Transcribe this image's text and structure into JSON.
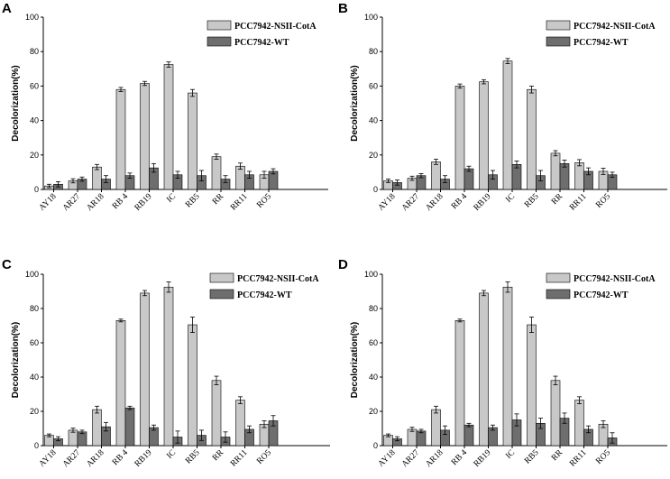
{
  "colors": {
    "nsii": "#c8c8c8",
    "wt": "#6e6e6e",
    "stroke": "#000000"
  },
  "chart_data": [
    {
      "type": "bar",
      "panel": "A",
      "ylabel": "Decolorization(%)",
      "xlabel": "",
      "ylim": [
        0,
        100
      ],
      "yticks": [
        0,
        20,
        40,
        60,
        80,
        100
      ],
      "categories": [
        "AY18",
        "AR27",
        "AR18",
        "RB 4",
        "RB19",
        "IC",
        "RB5",
        "RR",
        "RR11",
        "RO5"
      ],
      "legend_position": "top-right",
      "series": [
        {
          "name": "PCC7942-NSII-CotA",
          "values": [
            2,
            5,
            13,
            58,
            61.5,
            72.5,
            56,
            19,
            13.5,
            8.5
          ],
          "errors": [
            1,
            1.2,
            1.5,
            1.2,
            1.2,
            1.5,
            2,
            1.5,
            1.8,
            2
          ]
        },
        {
          "name": "PCC7942-WT",
          "values": [
            3,
            6,
            6,
            8,
            12.5,
            8.5,
            8,
            6,
            8.5,
            10.5
          ],
          "errors": [
            1.5,
            1.2,
            2,
            1.5,
            2.5,
            2,
            3,
            2,
            2,
            1.5
          ]
        }
      ]
    },
    {
      "type": "bar",
      "panel": "B",
      "ylabel": "Decolorization(%)",
      "xlabel": "",
      "ylim": [
        0,
        100
      ],
      "yticks": [
        0,
        20,
        40,
        60,
        80,
        100
      ],
      "categories": [
        "AY18",
        "AR27",
        "AR18",
        "RB 4",
        "RB19",
        "IC",
        "RB5",
        "RR",
        "RR11",
        "RO5"
      ],
      "legend_position": "top-right",
      "series": [
        {
          "name": "PCC7942-NSII-CotA",
          "values": [
            5,
            6.5,
            16,
            60,
            62.5,
            74.5,
            58,
            21,
            15.5,
            10.5
          ],
          "errors": [
            1,
            1.2,
            1.5,
            1.2,
            1.2,
            1.5,
            2,
            1.5,
            1.8,
            1.8
          ]
        },
        {
          "name": "PCC7942-WT",
          "values": [
            4,
            8,
            6,
            12,
            8.5,
            14.5,
            8,
            15,
            10.5,
            8.5
          ],
          "errors": [
            1.5,
            1.2,
            2,
            1.5,
            2.5,
            2,
            3,
            2,
            2,
            1.5
          ]
        }
      ]
    },
    {
      "type": "bar",
      "panel": "C",
      "ylabel": "Decolorization(%)",
      "xlabel": "",
      "ylim": [
        0,
        100
      ],
      "yticks": [
        0,
        20,
        40,
        60,
        80,
        100
      ],
      "categories": [
        "AY18",
        "AR27",
        "AR18",
        "RB 4",
        "RB19",
        "IC",
        "RB5",
        "RR",
        "RR11",
        "RO5"
      ],
      "legend_position": "top-right",
      "series": [
        {
          "name": "PCC7942-NSII-CotA",
          "values": [
            6,
            9,
            21,
            73,
            89,
            92.5,
            70.5,
            38,
            26.5,
            12.5
          ],
          "errors": [
            0.8,
            1.2,
            2,
            0.8,
            1.5,
            3,
            4.5,
            2.5,
            2,
            2
          ]
        },
        {
          "name": "PCC7942-WT",
          "values": [
            4,
            8,
            11,
            22,
            10.5,
            5,
            6,
            5,
            9.5,
            14.5
          ],
          "errors": [
            1.2,
            1,
            2.5,
            1,
            1.5,
            3.5,
            3,
            3,
            2,
            3
          ]
        }
      ]
    },
    {
      "type": "bar",
      "panel": "D",
      "ylabel": "Decolorization(%)",
      "xlabel": "",
      "ylim": [
        0,
        100
      ],
      "yticks": [
        0,
        20,
        40,
        60,
        80,
        100
      ],
      "categories": [
        "AY18",
        "AR27",
        "AR18",
        "RB 4",
        "RB19",
        "IC",
        "RB5",
        "RR",
        "RR11",
        "RO5"
      ],
      "legend_position": "top-right",
      "series": [
        {
          "name": "PCC7942-NSII-CotA",
          "values": [
            6,
            9.5,
            21,
            73,
            89,
            92.5,
            70.5,
            38,
            26.5,
            12.5
          ],
          "errors": [
            0.8,
            1.2,
            2,
            0.8,
            1.5,
            3,
            4.5,
            2.5,
            2,
            2
          ]
        },
        {
          "name": "PCC7942-WT",
          "values": [
            4,
            8.5,
            9,
            12,
            10.5,
            15,
            13,
            16,
            9.5,
            4.5
          ],
          "errors": [
            1.2,
            1,
            2.5,
            1,
            1.5,
            3.5,
            3,
            3,
            2,
            3
          ]
        }
      ]
    }
  ]
}
